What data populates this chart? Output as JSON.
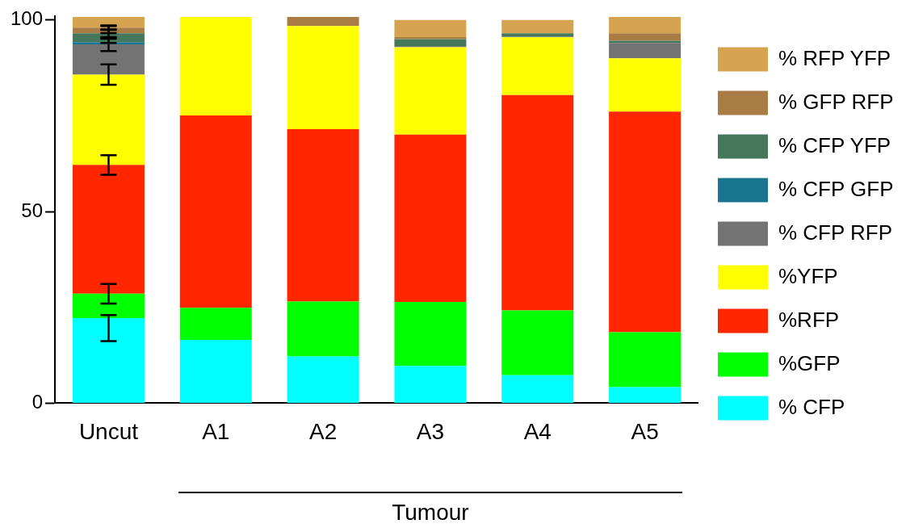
{
  "chart_data": {
    "type": "bar",
    "stacked": true,
    "categories": [
      "Uncut",
      "A1",
      "A2",
      "A3",
      "A4",
      "A5"
    ],
    "series": [
      {
        "name": "% CFP",
        "color": "#00ffff",
        "values": [
          22.2,
          16.5,
          12.2,
          9.7,
          7.3,
          4.2
        ],
        "errors": [
          [
            16.2,
            23.0
          ],
          null,
          null,
          null,
          null,
          null
        ]
      },
      {
        "name": "%GFP",
        "color": "#00ff00",
        "values": [
          6.4,
          8.4,
          14.3,
          16.7,
          16.9,
          14.3
        ],
        "errors": [
          [
            26.0,
            31.1
          ],
          null,
          null,
          null,
          null,
          null
        ]
      },
      {
        "name": "%RFP",
        "color": "#ff2600",
        "values": [
          33.6,
          50.2,
          45.0,
          43.7,
          56.2,
          57.6
        ],
        "errors": [
          [
            59.6,
            64.7
          ],
          null,
          null,
          null,
          null,
          null
        ]
      },
      {
        "name": "%YFP",
        "color": "#ffff00",
        "values": [
          23.5,
          25.7,
          26.9,
          22.8,
          15.1,
          13.9
        ],
        "errors": [
          [
            83.1,
            88.4
          ],
          null,
          null,
          null,
          null,
          null
        ]
      },
      {
        "name": "% CFP RFP",
        "color": "#737373",
        "values": [
          7.9,
          0,
          0,
          0.3,
          0.2,
          4.0
        ],
        "errors": [
          [
            91.9,
            95.3
          ],
          null,
          null,
          null,
          null,
          null
        ]
      },
      {
        "name": "% CFP GFP",
        "color": "#1a7590",
        "values": [
          0.6,
          0,
          0,
          0,
          0,
          0
        ],
        "errors": [
          [
            94.0,
            95.1
          ],
          null,
          null,
          null,
          null,
          null
        ]
      },
      {
        "name": "% CFP YFP",
        "color": "#45785a",
        "values": [
          2.3,
          0,
          0,
          1.8,
          0.8,
          0.6
        ],
        "errors": [
          [
            95.5,
            97.4
          ],
          null,
          null,
          null,
          null,
          null
        ]
      },
      {
        "name": "% GFP RFP",
        "color": "#a97c45",
        "values": [
          1.5,
          0,
          2.4,
          0.5,
          0,
          1.9
        ],
        "errors": [
          [
            96.6,
            98.4
          ],
          null,
          null,
          null,
          null,
          null
        ]
      },
      {
        "name": "% RFP YFP",
        "color": "#d6a450",
        "values": [
          2.8,
          0,
          0,
          4.5,
          3.5,
          4.3
        ],
        "errors": [
          [
            97.5,
            98.6
          ],
          null,
          null,
          null,
          null,
          null
        ]
      }
    ],
    "ylim": [
      0,
      101
    ],
    "yticks": [
      0,
      50,
      100
    ],
    "grid": false,
    "legend": "right",
    "annotations": [
      "Tumour"
    ]
  }
}
